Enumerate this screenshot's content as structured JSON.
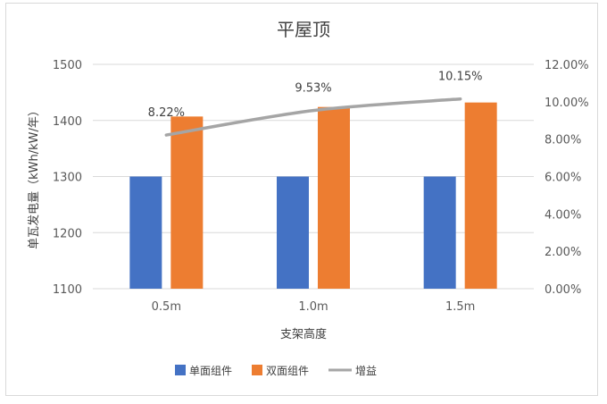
{
  "chart_data": {
    "type": "bar",
    "title": "平屋顶",
    "xlabel": "支架高度",
    "ylabel": "单瓦发电量（kWh/kW/年）",
    "categories": [
      "0.5m",
      "1.0m",
      "1.5m"
    ],
    "ylim": [
      1100,
      1500
    ],
    "yticks": [
      "1100",
      "1200",
      "1300",
      "1400",
      "1500"
    ],
    "y2lim": [
      0,
      12
    ],
    "y2ticks": [
      "0.00%",
      "2.00%",
      "4.00%",
      "6.00%",
      "8.00%",
      "10.00%",
      "12.00%"
    ],
    "grid": true,
    "legend_position": "bottom",
    "series": [
      {
        "name": "单面组件",
        "kind": "bar",
        "axis": "left",
        "color": "#4472C4",
        "values": [
          1300,
          1300,
          1300
        ]
      },
      {
        "name": "双面组件",
        "kind": "bar",
        "axis": "left",
        "color": "#ED7D31",
        "values": [
          1407,
          1424,
          1432
        ]
      },
      {
        "name": "增益",
        "kind": "line",
        "axis": "right",
        "color": "#A5A5A5",
        "values": [
          8.22,
          9.53,
          10.15
        ],
        "labels": [
          "8.22%",
          "9.53%",
          "10.15%"
        ]
      }
    ]
  }
}
